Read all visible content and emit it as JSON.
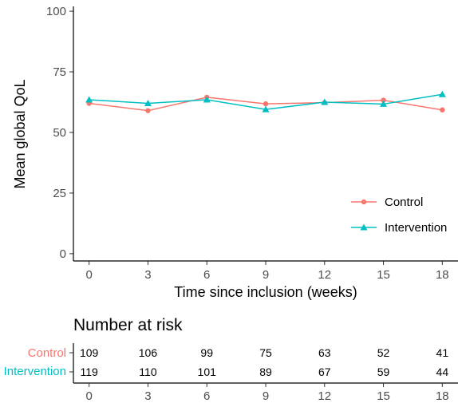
{
  "chart_data": [
    {
      "type": "line",
      "xlabel": "Time since inclusion (weeks)",
      "ylabel": "Mean global QoL",
      "x": [
        0,
        3,
        6,
        9,
        12,
        15,
        18
      ],
      "xlim": [
        -0.8,
        18.8
      ],
      "ylim": [
        -3,
        102
      ],
      "xticks": [
        "0",
        "3",
        "6",
        "9",
        "12",
        "15",
        "18"
      ],
      "yticks": [
        "0",
        "25",
        "50",
        "75",
        "100"
      ],
      "ytick_values": [
        0,
        25,
        50,
        75,
        100
      ],
      "grid": false,
      "legend_position": "bottom-right",
      "series": [
        {
          "name": "Control",
          "color": "#F8766D",
          "marker": "circle",
          "values": [
            62,
            59,
            64.5,
            61.8,
            62.3,
            63.3,
            59.3
          ]
        },
        {
          "name": "Intervention",
          "color": "#00BFC4",
          "marker": "triangle",
          "values": [
            63.5,
            62,
            63.5,
            59.5,
            62.5,
            61.7,
            65.7
          ]
        }
      ]
    },
    {
      "type": "table",
      "title": "Number at risk",
      "x": [
        0,
        3,
        6,
        9,
        12,
        15,
        18
      ],
      "xticks": [
        "0",
        "3",
        "6",
        "9",
        "12",
        "15",
        "18"
      ],
      "rows": [
        {
          "name": "Control",
          "color": "#F8766D",
          "values": [
            109,
            106,
            99,
            75,
            63,
            52,
            41
          ]
        },
        {
          "name": "Intervention",
          "color": "#00BFC4",
          "values": [
            119,
            110,
            101,
            89,
            67,
            59,
            44
          ]
        }
      ]
    }
  ]
}
